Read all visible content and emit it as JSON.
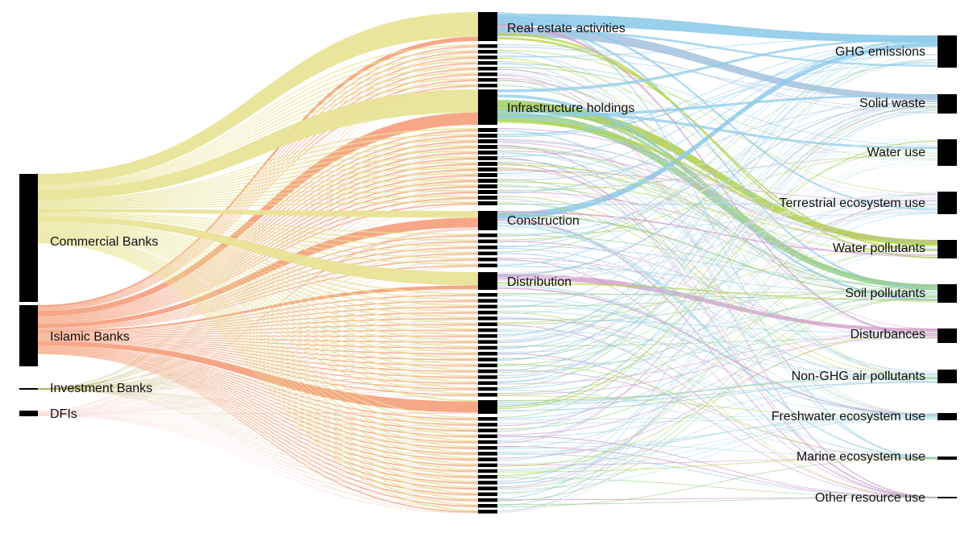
{
  "diagram": {
    "type": "sankey",
    "sources": [
      {
        "id": "commercial",
        "label": "Commercial Banks",
        "color": "#e8e394"
      },
      {
        "id": "islamic",
        "label": "Islamic Banks",
        "color": "#f5a07e"
      },
      {
        "id": "investment",
        "label": "Investment Banks",
        "color": "#b3b05a"
      },
      {
        "id": "dfi",
        "label": "DFIs",
        "color": "#f9d6d2"
      }
    ],
    "sectors": [
      {
        "label": "Real estate activities"
      },
      {
        "label": "Infrastructure holdings"
      },
      {
        "label": "Construction"
      },
      {
        "label": "Distribution"
      }
    ],
    "impacts": [
      {
        "label": "GHG emissions",
        "color": "#8ecbea"
      },
      {
        "label": "Solid waste",
        "color": "#aac4df"
      },
      {
        "label": "Water use",
        "color": "#dcecf5"
      },
      {
        "label": "Terrestrial ecosystem use",
        "color": "#e4e3f0"
      },
      {
        "label": "Water pollutants",
        "color": "#b6d44a"
      },
      {
        "label": "Soil pollutants",
        "color": "#9ccf8e"
      },
      {
        "label": "Disturbances",
        "color": "#d49ccc"
      },
      {
        "label": "Non-GHG air pollutants",
        "color": "#a8d6e6"
      },
      {
        "label": "Freshwater ecosystem use",
        "color": "#b7dfe8"
      },
      {
        "label": "Marine ecosystem use",
        "color": "#a9dbe8"
      },
      {
        "label": "Other resource use",
        "color": "#c685bd"
      }
    ],
    "flow_colors": [
      "#8ecbea",
      "#b6d44a",
      "#d49ccc",
      "#a8d6e6",
      "#9ccf8e"
    ],
    "node_color": "#000000"
  }
}
